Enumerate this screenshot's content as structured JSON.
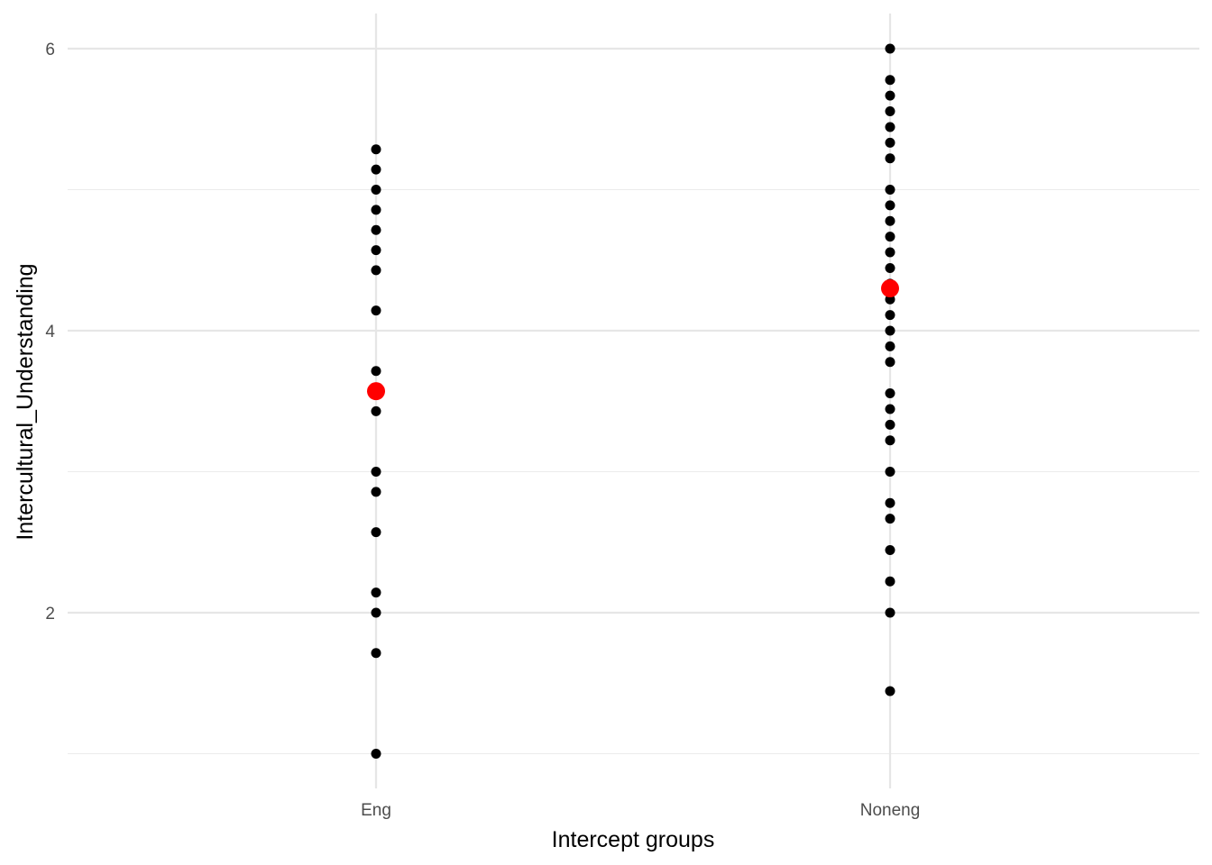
{
  "chart_data": {
    "type": "scatter",
    "title": "",
    "xlabel": "Intercept groups",
    "ylabel": "Intercultural_Understanding",
    "categories": [
      "Eng",
      "Noneng"
    ],
    "ylim": [
      0.875,
      6.25
    ],
    "yticks": [
      2,
      4,
      6
    ],
    "grid": true,
    "legend": "none",
    "series": [
      {
        "role": "observations",
        "color": "#000000",
        "points": [
          {
            "x": "Eng",
            "y": 5.286
          },
          {
            "x": "Eng",
            "y": 5.143
          },
          {
            "x": "Eng",
            "y": 5.0
          },
          {
            "x": "Eng",
            "y": 4.857
          },
          {
            "x": "Eng",
            "y": 4.714
          },
          {
            "x": "Eng",
            "y": 4.571
          },
          {
            "x": "Eng",
            "y": 4.429
          },
          {
            "x": "Eng",
            "y": 4.143
          },
          {
            "x": "Eng",
            "y": 3.714
          },
          {
            "x": "Eng",
            "y": 3.429
          },
          {
            "x": "Eng",
            "y": 3.0
          },
          {
            "x": "Eng",
            "y": 2.857
          },
          {
            "x": "Eng",
            "y": 2.571
          },
          {
            "x": "Eng",
            "y": 2.143
          },
          {
            "x": "Eng",
            "y": 2.0
          },
          {
            "x": "Eng",
            "y": 1.714
          },
          {
            "x": "Eng",
            "y": 1.0
          },
          {
            "x": "Noneng",
            "y": 6.0
          },
          {
            "x": "Noneng",
            "y": 5.778
          },
          {
            "x": "Noneng",
            "y": 5.667
          },
          {
            "x": "Noneng",
            "y": 5.556
          },
          {
            "x": "Noneng",
            "y": 5.444
          },
          {
            "x": "Noneng",
            "y": 5.333
          },
          {
            "x": "Noneng",
            "y": 5.222
          },
          {
            "x": "Noneng",
            "y": 5.0
          },
          {
            "x": "Noneng",
            "y": 4.889
          },
          {
            "x": "Noneng",
            "y": 4.778
          },
          {
            "x": "Noneng",
            "y": 4.667
          },
          {
            "x": "Noneng",
            "y": 4.556
          },
          {
            "x": "Noneng",
            "y": 4.444
          },
          {
            "x": "Noneng",
            "y": 4.333
          },
          {
            "x": "Noneng",
            "y": 4.222
          },
          {
            "x": "Noneng",
            "y": 4.111
          },
          {
            "x": "Noneng",
            "y": 4.0
          },
          {
            "x": "Noneng",
            "y": 3.889
          },
          {
            "x": "Noneng",
            "y": 3.778
          },
          {
            "x": "Noneng",
            "y": 3.556
          },
          {
            "x": "Noneng",
            "y": 3.444
          },
          {
            "x": "Noneng",
            "y": 3.333
          },
          {
            "x": "Noneng",
            "y": 3.222
          },
          {
            "x": "Noneng",
            "y": 3.0
          },
          {
            "x": "Noneng",
            "y": 2.778
          },
          {
            "x": "Noneng",
            "y": 2.667
          },
          {
            "x": "Noneng",
            "y": 2.444
          },
          {
            "x": "Noneng",
            "y": 2.222
          },
          {
            "x": "Noneng",
            "y": 2.0
          },
          {
            "x": "Noneng",
            "y": 1.444
          }
        ]
      },
      {
        "role": "group-intercepts",
        "color": "#ff0000",
        "points": [
          {
            "x": "Eng",
            "y": 3.571
          },
          {
            "x": "Noneng",
            "y": 4.3
          }
        ]
      }
    ]
  }
}
